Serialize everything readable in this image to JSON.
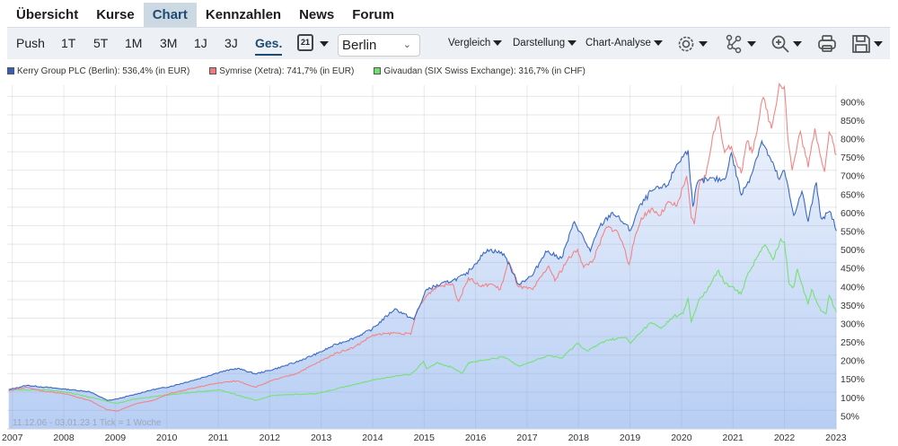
{
  "nav": {
    "tabs": [
      {
        "label": "Übersicht"
      },
      {
        "label": "Kurse"
      },
      {
        "label": "Chart",
        "active": true
      },
      {
        "label": "Kennzahlen"
      },
      {
        "label": "News"
      },
      {
        "label": "Forum"
      }
    ]
  },
  "toolbar": {
    "ranges": [
      {
        "label": "Push"
      },
      {
        "label": "1T"
      },
      {
        "label": "5T"
      },
      {
        "label": "1M"
      },
      {
        "label": "3M"
      },
      {
        "label": "1J"
      },
      {
        "label": "3J"
      },
      {
        "label": "Ges.",
        "active": true
      }
    ],
    "calendar_day": "21",
    "exchange": "Berlin",
    "menus": [
      "Vergleich",
      "Darstellung",
      "Chart-Analyse"
    ],
    "icons": [
      "settings-gear-icon",
      "indicators-icon",
      "zoom-in-icon",
      "print-icon",
      "save-icon"
    ]
  },
  "legend": [
    {
      "label": "Kerry Group PLC (Berlin): 536,4% (in EUR)",
      "color": "#2f5fb8"
    },
    {
      "label": "Symrise (Xetra): 741,7% (in EUR)",
      "color": "#f07a7a"
    },
    {
      "label": "Givaudan (SIX Swiss Exchange): 316,7% (in CHF)",
      "color": "#6be36b"
    }
  ],
  "info": "11.12.06 - 03.01.23   1 Tick = 1 Woche",
  "chart_data": {
    "type": "line",
    "xlim": [
      2006.9,
      2023.02
    ],
    "ylim": [
      0,
      930
    ],
    "x_ticks": [
      "2007",
      "2008",
      "2009",
      "2010",
      "2011",
      "2012",
      "2013",
      "2014",
      "2015",
      "2016",
      "2017",
      "2018",
      "2019",
      "2020",
      "2021",
      "2022",
      "2023"
    ],
    "y_ticks": [
      "50%",
      "100%",
      "150%",
      "200%",
      "250%",
      "300%",
      "350%",
      "400%",
      "450%",
      "500%",
      "550%",
      "600%",
      "650%",
      "700%",
      "750%",
      "800%",
      "850%",
      "900%"
    ],
    "grid": true,
    "legend_position": "top-left",
    "series": [
      {
        "name": "Kerry Group PLC (Berlin)",
        "color": "#3a68c4",
        "filled": true,
        "points": [
          [
            2006.93,
            106
          ],
          [
            2007.28,
            118
          ],
          [
            2007.63,
            113
          ],
          [
            2008.01,
            108
          ],
          [
            2008.5,
            101
          ],
          [
            2008.85,
            77
          ],
          [
            2009.03,
            81
          ],
          [
            2009.37,
            93
          ],
          [
            2009.72,
            106
          ],
          [
            2010.07,
            115
          ],
          [
            2010.6,
            135
          ],
          [
            2011.03,
            154
          ],
          [
            2011.38,
            164
          ],
          [
            2011.72,
            149
          ],
          [
            2012.07,
            161
          ],
          [
            2012.5,
            180
          ],
          [
            2012.94,
            205
          ],
          [
            2013.29,
            229
          ],
          [
            2013.64,
            246
          ],
          [
            2013.99,
            270
          ],
          [
            2014.43,
            325
          ],
          [
            2014.8,
            296
          ],
          [
            2015.05,
            378
          ],
          [
            2015.55,
            402
          ],
          [
            2015.8,
            416
          ],
          [
            2016.23,
            486
          ],
          [
            2016.55,
            474
          ],
          [
            2016.83,
            392
          ],
          [
            2017.11,
            416
          ],
          [
            2017.36,
            481
          ],
          [
            2017.67,
            462
          ],
          [
            2017.92,
            561
          ],
          [
            2018.23,
            481
          ],
          [
            2018.41,
            547
          ],
          [
            2018.66,
            586
          ],
          [
            2018.85,
            561
          ],
          [
            2019.01,
            537
          ],
          [
            2019.16,
            595
          ],
          [
            2019.41,
            643
          ],
          [
            2019.72,
            658
          ],
          [
            2019.91,
            716
          ],
          [
            2020.13,
            754
          ],
          [
            2020.22,
            602
          ],
          [
            2020.31,
            667
          ],
          [
            2020.53,
            675
          ],
          [
            2020.84,
            675
          ],
          [
            2020.97,
            747
          ],
          [
            2021.16,
            633
          ],
          [
            2021.34,
            682
          ],
          [
            2021.56,
            779
          ],
          [
            2021.75,
            723
          ],
          [
            2021.9,
            675
          ],
          [
            2022.0,
            699
          ],
          [
            2022.18,
            578
          ],
          [
            2022.34,
            643
          ],
          [
            2022.46,
            561
          ],
          [
            2022.62,
            667
          ],
          [
            2022.71,
            571
          ],
          [
            2022.9,
            586
          ],
          [
            2023.01,
            536
          ]
        ]
      },
      {
        "name": "Symrise (Xetra)",
        "color": "#f28585",
        "points": [
          [
            2006.93,
            103
          ],
          [
            2007.28,
            113
          ],
          [
            2007.63,
            101
          ],
          [
            2008.01,
            96
          ],
          [
            2008.5,
            77
          ],
          [
            2008.85,
            52
          ],
          [
            2009.03,
            48
          ],
          [
            2009.37,
            67
          ],
          [
            2009.72,
            77
          ],
          [
            2010.07,
            96
          ],
          [
            2010.6,
            113
          ],
          [
            2011.03,
            125
          ],
          [
            2011.38,
            130
          ],
          [
            2011.72,
            113
          ],
          [
            2012.07,
            132
          ],
          [
            2012.5,
            149
          ],
          [
            2012.94,
            180
          ],
          [
            2013.29,
            205
          ],
          [
            2013.64,
            221
          ],
          [
            2013.99,
            253
          ],
          [
            2014.43,
            260
          ],
          [
            2014.74,
            256
          ],
          [
            2014.86,
            320
          ],
          [
            2015.05,
            361
          ],
          [
            2015.24,
            385
          ],
          [
            2015.55,
            393
          ],
          [
            2015.67,
            345
          ],
          [
            2015.86,
            409
          ],
          [
            2016.11,
            385
          ],
          [
            2016.3,
            393
          ],
          [
            2016.48,
            377
          ],
          [
            2016.64,
            453
          ],
          [
            2016.83,
            385
          ],
          [
            2017.11,
            377
          ],
          [
            2017.42,
            441
          ],
          [
            2017.54,
            401
          ],
          [
            2017.79,
            458
          ],
          [
            2017.98,
            486
          ],
          [
            2018.1,
            437
          ],
          [
            2018.29,
            458
          ],
          [
            2018.54,
            546
          ],
          [
            2018.73,
            538
          ],
          [
            2018.85,
            506
          ],
          [
            2018.98,
            445
          ],
          [
            2019.07,
            502
          ],
          [
            2019.22,
            571
          ],
          [
            2019.41,
            595
          ],
          [
            2019.6,
            579
          ],
          [
            2019.72,
            611
          ],
          [
            2019.91,
            603
          ],
          [
            2020.1,
            684
          ],
          [
            2020.19,
            571
          ],
          [
            2020.25,
            554
          ],
          [
            2020.35,
            667
          ],
          [
            2020.47,
            684
          ],
          [
            2020.6,
            788
          ],
          [
            2020.72,
            845
          ],
          [
            2020.84,
            748
          ],
          [
            2020.97,
            764
          ],
          [
            2021.16,
            692
          ],
          [
            2021.28,
            780
          ],
          [
            2021.37,
            748
          ],
          [
            2021.59,
            897
          ],
          [
            2021.75,
            813
          ],
          [
            2021.9,
            934
          ],
          [
            2022.0,
            926
          ],
          [
            2022.06,
            797
          ],
          [
            2022.15,
            700
          ],
          [
            2022.31,
            805
          ],
          [
            2022.46,
            708
          ],
          [
            2022.59,
            813
          ],
          [
            2022.78,
            696
          ],
          [
            2022.87,
            805
          ],
          [
            2023.01,
            742
          ]
        ]
      },
      {
        "name": "Givaudan (SIX Swiss Exchange)",
        "color": "#74e274",
        "points": [
          [
            2006.93,
            106
          ],
          [
            2007.63,
            106
          ],
          [
            2008.01,
            101
          ],
          [
            2008.5,
            86
          ],
          [
            2009.03,
            69
          ],
          [
            2009.37,
            81
          ],
          [
            2010.07,
            93
          ],
          [
            2011.03,
            106
          ],
          [
            2011.72,
            77
          ],
          [
            2012.07,
            91
          ],
          [
            2012.94,
            96
          ],
          [
            2013.99,
            132
          ],
          [
            2014.43,
            143
          ],
          [
            2014.74,
            147
          ],
          [
            2014.99,
            183
          ],
          [
            2015.05,
            163
          ],
          [
            2015.24,
            179
          ],
          [
            2015.55,
            167
          ],
          [
            2015.74,
            151
          ],
          [
            2015.86,
            179
          ],
          [
            2016.23,
            187
          ],
          [
            2016.55,
            195
          ],
          [
            2016.83,
            171
          ],
          [
            2017.11,
            183
          ],
          [
            2017.42,
            199
          ],
          [
            2017.67,
            191
          ],
          [
            2017.98,
            232
          ],
          [
            2018.17,
            211
          ],
          [
            2018.54,
            240
          ],
          [
            2018.91,
            248
          ],
          [
            2019.01,
            232
          ],
          [
            2019.22,
            264
          ],
          [
            2019.41,
            288
          ],
          [
            2019.6,
            272
          ],
          [
            2019.85,
            305
          ],
          [
            2020.03,
            312
          ],
          [
            2020.13,
            353
          ],
          [
            2020.19,
            288
          ],
          [
            2020.35,
            353
          ],
          [
            2020.47,
            369
          ],
          [
            2020.6,
            401
          ],
          [
            2020.72,
            429
          ],
          [
            2020.84,
            393
          ],
          [
            2020.97,
            385
          ],
          [
            2021.16,
            365
          ],
          [
            2021.28,
            417
          ],
          [
            2021.47,
            466
          ],
          [
            2021.62,
            498
          ],
          [
            2021.78,
            458
          ],
          [
            2021.93,
            514
          ],
          [
            2022.0,
            506
          ],
          [
            2022.09,
            393
          ],
          [
            2022.18,
            385
          ],
          [
            2022.25,
            433
          ],
          [
            2022.46,
            337
          ],
          [
            2022.53,
            377
          ],
          [
            2022.71,
            320
          ],
          [
            2022.81,
            312
          ],
          [
            2022.87,
            361
          ],
          [
            2023.01,
            317
          ]
        ]
      }
    ]
  }
}
